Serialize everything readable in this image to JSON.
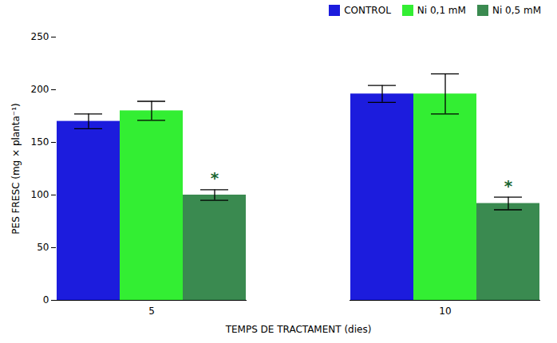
{
  "chart_data": {
    "type": "bar",
    "xlabel": "TEMPS DE TRACTAMENT (dies)",
    "ylabel": "PES FRESC (mg × planta⁻¹)",
    "categories": [
      "5",
      "10"
    ],
    "series": [
      {
        "name": "CONTROL",
        "color": "#1c1cdd",
        "values": [
          170,
          196
        ],
        "errors": [
          7,
          8
        ]
      },
      {
        "name": "Ni 0,1 mM",
        "color": "#33ee33",
        "values": [
          180,
          196
        ],
        "errors": [
          9,
          19
        ]
      },
      {
        "name": "Ni 0,5 mM",
        "color": "#3a8a50",
        "values": [
          100,
          92
        ],
        "errors": [
          5,
          6
        ]
      }
    ],
    "annotations": [
      {
        "text": "*",
        "category": "5",
        "series": "Ni 0,5 mM",
        "color": "#1a6630"
      },
      {
        "text": "*",
        "category": "10",
        "series": "Ni 0,5 mM",
        "color": "#1a6630"
      }
    ],
    "ylim": [
      0,
      250
    ],
    "yticks": [
      0,
      50,
      100,
      150,
      200,
      250
    ],
    "grid": false,
    "legend": "upper right"
  }
}
